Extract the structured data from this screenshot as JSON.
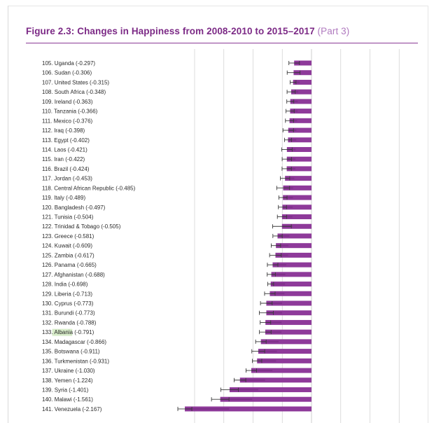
{
  "title": {
    "main": "Figure 2.3: Changes in Happiness from 2008-2010 to 2015–2017",
    "part": "(Part 3)"
  },
  "colors": {
    "bar": "#8e3a9a",
    "bar_dark": "#6b2576",
    "error": "#3a3a3a",
    "grid": "#cfcfcf",
    "title": "#7c2a86",
    "highlight": "#d7ecc9"
  },
  "chart_data": {
    "type": "bar",
    "orientation": "horizontal",
    "title": "Figure 2.3: Changes in Happiness from 2008-2010 to 2015–2017 (Part 3)",
    "xlabel": "",
    "ylabel": "",
    "xlim": [
      -2.5,
      1.5
    ],
    "grid": true,
    "highlighted": "Albania",
    "categories": [
      {
        "label": "105. Uganda (-0.297)",
        "value": -0.297,
        "err": 0.09
      },
      {
        "label": "106. Sudan (-0.306)",
        "value": -0.306,
        "err": 0.11
      },
      {
        "label": "107. United States (-0.315)",
        "value": -0.315,
        "err": 0.05
      },
      {
        "label": "108. South Africa (-0.348)",
        "value": -0.348,
        "err": 0.07
      },
      {
        "label": "109. Ireland (-0.363)",
        "value": -0.363,
        "err": 0.06
      },
      {
        "label": "110. Tanzania (-0.366)",
        "value": -0.366,
        "err": 0.07
      },
      {
        "label": "111. Mexico (-0.376)",
        "value": -0.376,
        "err": 0.07
      },
      {
        "label": "112. Iraq (-0.398)",
        "value": -0.398,
        "err": 0.09
      },
      {
        "label": "113. Egypt (-0.402)",
        "value": -0.402,
        "err": 0.06
      },
      {
        "label": "114. Laos (-0.421)",
        "value": -0.421,
        "err": 0.09
      },
      {
        "label": "115. Iran (-0.422)",
        "value": -0.422,
        "err": 0.08
      },
      {
        "label": "116. Brazil (-0.424)",
        "value": -0.424,
        "err": 0.08
      },
      {
        "label": "117. Jordan (-0.453)",
        "value": -0.453,
        "err": 0.08
      },
      {
        "label": "118. Central African Republic (-0.485)",
        "value": -0.485,
        "err": 0.11
      },
      {
        "label": "119. Italy (-0.489)",
        "value": -0.489,
        "err": 0.07
      },
      {
        "label": "120. Bangladesh (-0.497)",
        "value": -0.497,
        "err": 0.07
      },
      {
        "label": "121. Tunisia (-0.504)",
        "value": -0.504,
        "err": 0.08
      },
      {
        "label": "122. Trinidad & Tobago (-0.505)",
        "value": -0.505,
        "err": 0.16
      },
      {
        "label": "123. Greece (-0.581)",
        "value": -0.581,
        "err": 0.08
      },
      {
        "label": "124. Kuwait (-0.609)",
        "value": -0.609,
        "err": 0.08
      },
      {
        "label": "125. Zambia (-0.617)",
        "value": -0.617,
        "err": 0.1
      },
      {
        "label": "126. Panama (-0.665)",
        "value": -0.665,
        "err": 0.09
      },
      {
        "label": "127. Afghanistan (-0.688)",
        "value": -0.688,
        "err": 0.07
      },
      {
        "label": "128. India (-0.698)",
        "value": -0.698,
        "err": 0.05
      },
      {
        "label": "129. Liberia (-0.713)",
        "value": -0.713,
        "err": 0.09
      },
      {
        "label": "130. Cyprus (-0.773)",
        "value": -0.773,
        "err": 0.1
      },
      {
        "label": "131. Burundi (-0.773)",
        "value": -0.773,
        "err": 0.12
      },
      {
        "label": "132. Rwanda (-0.788)",
        "value": -0.788,
        "err": 0.09
      },
      {
        "label": "133. Albania (-0.791)",
        "value": -0.791,
        "err": 0.1
      },
      {
        "label": "134. Madagascar (-0.866)",
        "value": -0.866,
        "err": 0.09
      },
      {
        "label": "135. Botswana (-0.911)",
        "value": -0.911,
        "err": 0.11
      },
      {
        "label": "136. Turkmenistan (-0.931)",
        "value": -0.931,
        "err": 0.08
      },
      {
        "label": "137. Ukraine (-1.030)",
        "value": -1.03,
        "err": 0.09
      },
      {
        "label": "138. Yemen (-1.224)",
        "value": -1.224,
        "err": 0.1
      },
      {
        "label": "139. Syria (-1.401)",
        "value": -1.401,
        "err": 0.15
      },
      {
        "label": "140. Malawi (-1.561)",
        "value": -1.561,
        "err": 0.15
      },
      {
        "label": "141. Venezuela (-2.167)",
        "value": -2.167,
        "err": 0.12
      }
    ]
  }
}
